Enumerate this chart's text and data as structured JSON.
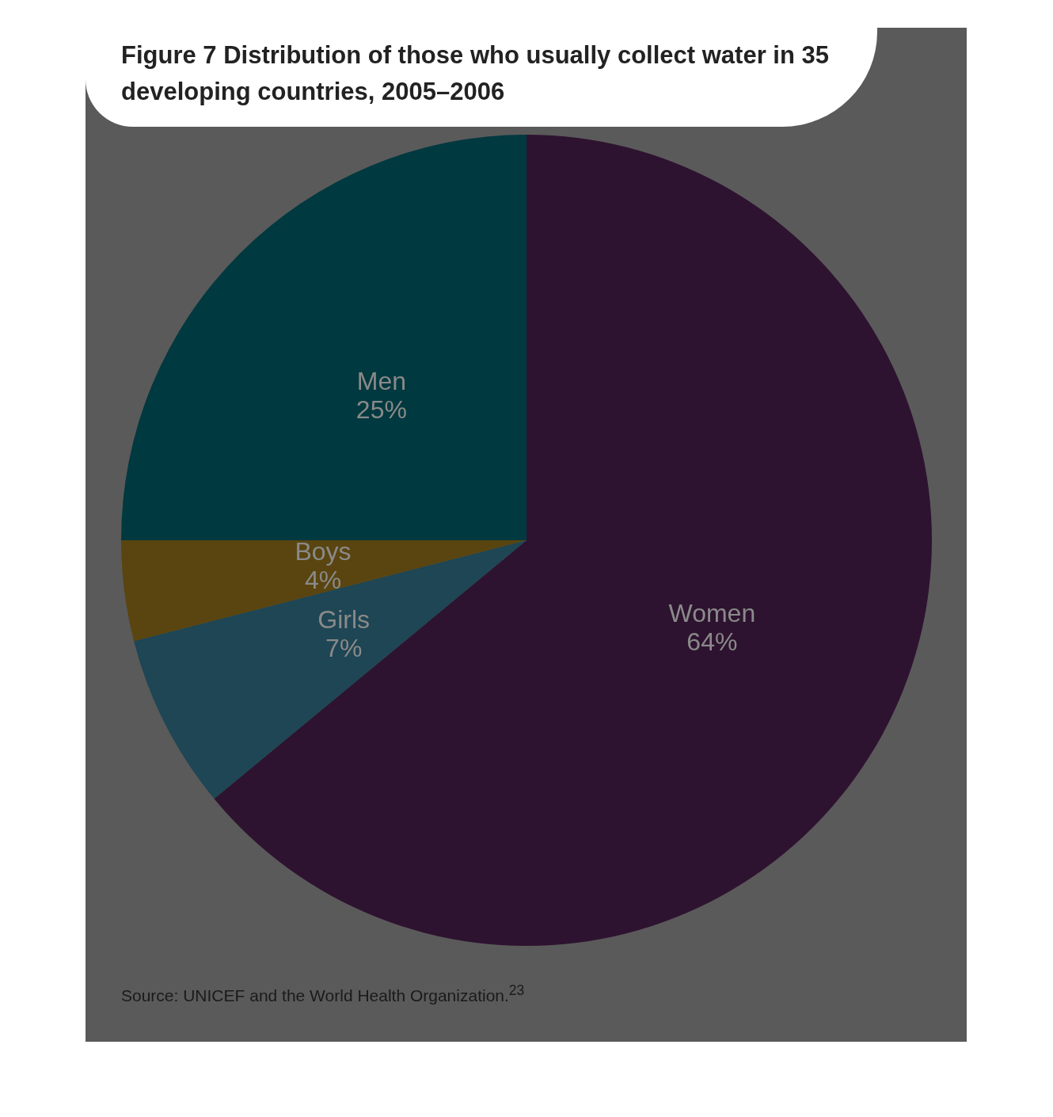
{
  "chart_data": {
    "type": "pie",
    "title": "Figure 7  Distribution of those who usually collect water in 35 developing countries, 2005–2006",
    "categories": [
      "Women",
      "Girls",
      "Boys",
      "Men"
    ],
    "values": [
      64,
      7,
      4,
      25
    ],
    "colors": [
      "#2e1330",
      "#1e4654",
      "#5a4510",
      "#00393f"
    ],
    "value_labels": [
      "64%",
      "7%",
      "4%",
      "25%"
    ],
    "legend": false,
    "annotations": [
      "Source: UNICEF and the World Health Organization.$^{23}$"
    ]
  }
}
